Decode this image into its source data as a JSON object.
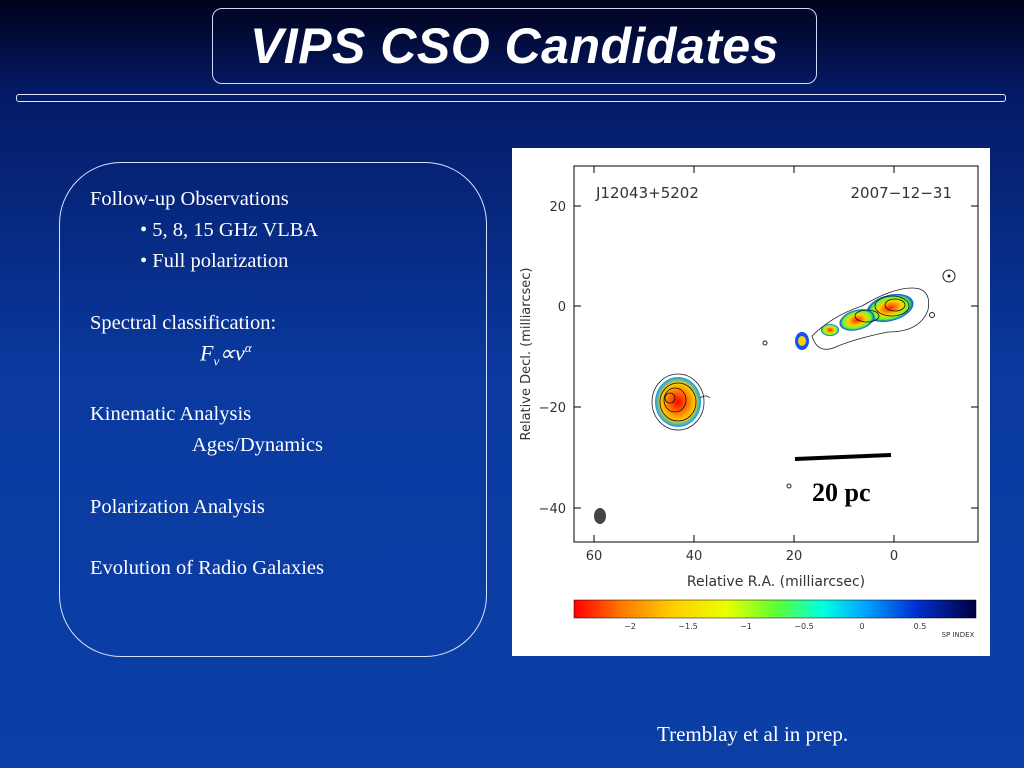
{
  "slide": {
    "title": "VIPS CSO Candidates",
    "credit": "Tremblay et al in prep."
  },
  "content": {
    "heading1": "Follow-up Observations",
    "bullet1": "• 5, 8, 15 GHz VLBA",
    "bullet2": "• Full polarization",
    "heading2": "Spectral classification:",
    "formula": {
      "F": "F",
      "nu": "ν",
      "prop": "∝",
      "alpha": "α"
    },
    "heading3": "Kinematic Analysis",
    "sub3": "Ages/Dynamics",
    "heading4": "Polarization Analysis",
    "heading5": "Evolution of Radio Galaxies"
  },
  "figure": {
    "source": "J12043+5202",
    "date": "2007−12−31",
    "x_axis_label": "Relative R.A. (milliarcsec)",
    "y_axis_label": "Relative Decl. (milliarcsec)",
    "x_ticks": [
      "60",
      "40",
      "20",
      "0"
    ],
    "y_ticks": [
      "20",
      "0",
      "−20",
      "−40"
    ],
    "scale_bar_label": "20 pc",
    "colorbar_ticks": [
      "−2",
      "−1.5",
      "−1",
      "−0.5",
      "0",
      "0.5"
    ],
    "colorbar_label": "SP INDEX"
  }
}
